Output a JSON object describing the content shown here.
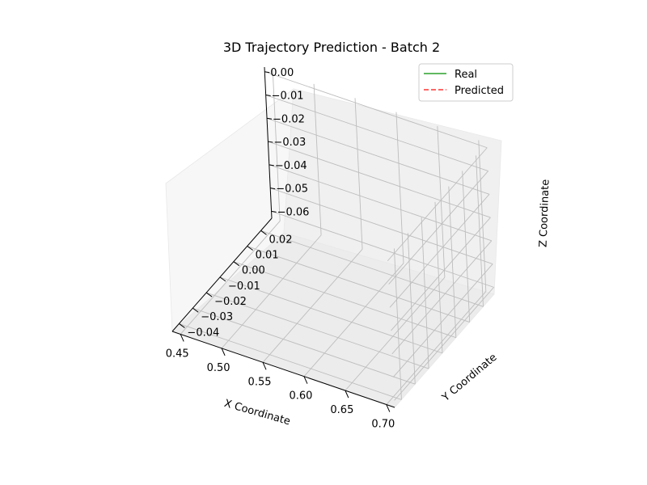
{
  "chart_data": {
    "type": "line",
    "projection": "3d",
    "title": "3D Trajectory Prediction - Batch 2",
    "xlabel": "X Coordinate",
    "ylabel": "Y Coordinate",
    "zlabel": "Z Coordinate",
    "xlim": [
      0.44,
      0.71
    ],
    "ylim": [
      -0.045,
      0.028
    ],
    "zlim": [
      -0.063,
      0.002
    ],
    "x_ticks": [
      0.45,
      0.5,
      0.55,
      0.6,
      0.65,
      0.7
    ],
    "x_tick_labels": [
      "0.45",
      "0.50",
      "0.55",
      "0.60",
      "0.65",
      "0.70"
    ],
    "y_ticks": [
      -0.04,
      -0.03,
      -0.02,
      -0.01,
      0.0,
      0.01,
      0.02
    ],
    "y_tick_labels": [
      "−0.04",
      "−0.03",
      "−0.02",
      "−0.01",
      "0.00",
      "0.01",
      "0.02"
    ],
    "z_ticks": [
      0.0,
      -0.01,
      -0.02,
      -0.03,
      -0.04,
      -0.05,
      -0.06
    ],
    "z_tick_labels": [
      "0.00",
      "−0.01",
      "−0.02",
      "−0.03",
      "−0.04",
      "−0.05",
      "−0.06"
    ],
    "grid": true,
    "legend_position": "top-right",
    "series": [
      {
        "name": "Real",
        "color": "#2ca02c",
        "linestyle": "solid",
        "x": [],
        "y": [],
        "z": []
      },
      {
        "name": "Predicted",
        "color": "#ff3333",
        "linestyle": "dashed",
        "x": [],
        "y": [],
        "z": []
      }
    ]
  }
}
